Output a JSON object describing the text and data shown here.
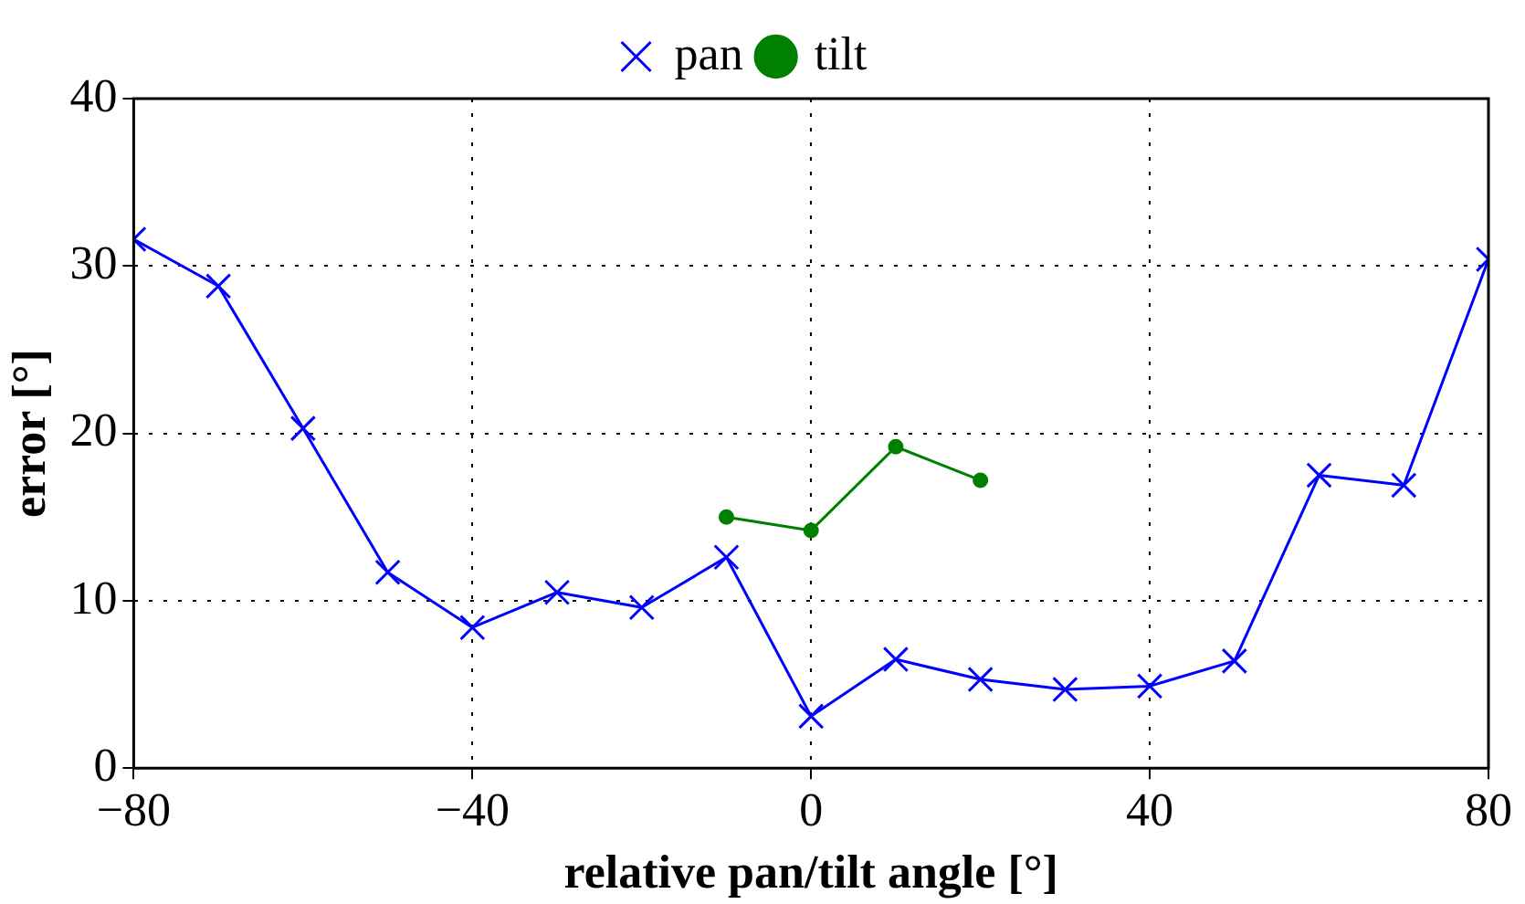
{
  "chart_data": {
    "type": "line",
    "xlabel": "relative pan/tilt angle [°]",
    "ylabel": "error [°]",
    "xlim": [
      -80,
      80
    ],
    "xticks": [
      -80,
      -40,
      0,
      40,
      80
    ],
    "ylim": [
      0,
      40
    ],
    "yticks": [
      0,
      10,
      20,
      30,
      40
    ],
    "grid": true,
    "legend": "top",
    "series": [
      {
        "name": "pan",
        "color": "#0000ff",
        "marker": "cross",
        "x": [
          -80,
          -70,
          -60,
          -50,
          -40,
          -30,
          -20,
          -10,
          0,
          10,
          20,
          30,
          40,
          50,
          60,
          70,
          80
        ],
        "values": [
          31.6,
          28.8,
          20.3,
          11.7,
          8.4,
          10.5,
          9.6,
          12.6,
          3.1,
          6.5,
          5.3,
          4.7,
          4.9,
          6.4,
          17.5,
          16.9,
          30.4
        ]
      },
      {
        "name": "tilt",
        "color": "#008000",
        "marker": "circle",
        "x": [
          -10,
          0,
          10,
          20
        ],
        "values": [
          15.0,
          14.2,
          19.2,
          17.2
        ]
      }
    ]
  }
}
